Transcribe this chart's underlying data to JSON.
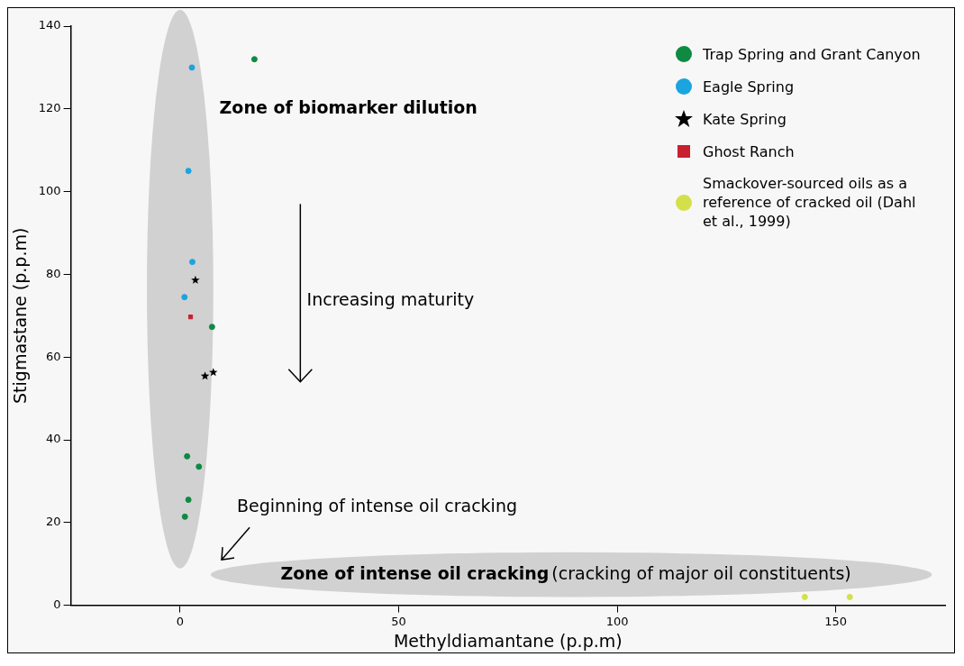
{
  "chart_data": {
    "type": "scatter",
    "xlabel": "Methyldiamantane (p.p.m)",
    "ylabel": "Stigmastane (p.p.m)",
    "xlim": [
      -25,
      175
    ],
    "xticks": [
      0,
      50,
      100,
      150
    ],
    "ylim": [
      0,
      140
    ],
    "yticks": [
      0,
      20,
      40,
      60,
      80,
      100,
      120,
      140
    ],
    "legend": "top right",
    "series": [
      {
        "name": "Trap Spring and Grant Canyon",
        "color": "#0e8a43",
        "marker": "circle",
        "x": [
          17,
          7.3,
          1.6,
          4.3,
          1.9,
          1.1
        ],
        "values": [
          132,
          67.3,
          36,
          33.5,
          25.5,
          21.4
        ]
      },
      {
        "name": "Eagle Spring",
        "color": "#1ba4e0",
        "marker": "circle",
        "x": [
          2.7,
          1.9,
          2.8,
          1
        ],
        "values": [
          130,
          105,
          83,
          74.5
        ]
      },
      {
        "name": "Kate Spring",
        "color": "#000000",
        "marker": "star",
        "x": [
          3.5,
          5.7,
          7.6
        ],
        "values": [
          78.6,
          55.4,
          56.3
        ]
      },
      {
        "name": "Ghost Ranch",
        "color": "#c8202f",
        "marker": "square",
        "x": [
          2.4
        ],
        "values": [
          69.7
        ]
      },
      {
        "name": "Smackover-sourced oils as a reference of cracked oil (Dahl et al., 1999)",
        "color": "#d4e04a",
        "marker": "circle",
        "x": [
          142.9,
          153.2
        ],
        "values": [
          2,
          2
        ]
      }
    ],
    "annotations": [
      "Zone of biomarker dilution",
      "Increasing maturity",
      "Beginning of intense oil cracking",
      "Zone of intense oil cracking",
      "(cracking of major oil constituents)"
    ]
  }
}
